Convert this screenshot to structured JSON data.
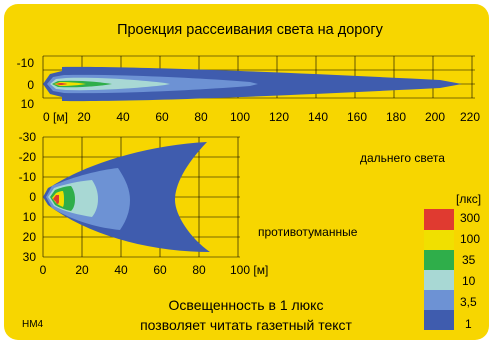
{
  "title": "Проекция рассеивания света на дорогу",
  "colors": {
    "background": "#f7d600",
    "frame": "#ffffff",
    "grid": "#000000",
    "zone_1": "#3f5cae",
    "zone_3_5": "#6d92d4",
    "zone_10": "#a8d8d4",
    "zone_35": "#2fae4a",
    "zone_100": "#f0e000",
    "zone_300": "#e03a30"
  },
  "high_beam": {
    "label": "дальнего света",
    "x_ticks": [
      "0 [м]",
      "20",
      "40",
      "60",
      "80",
      "100",
      "120",
      "140",
      "160",
      "180",
      "200",
      "220"
    ],
    "y_ticks": [
      "-10",
      "0",
      "10"
    ]
  },
  "fog_lamp": {
    "label": "противотуманные",
    "x_ticks": [
      "0",
      "20",
      "40",
      "60",
      "80",
      "100 [м]"
    ],
    "y_ticks": [
      "-30",
      "-20",
      "-10",
      "0",
      "10",
      "20",
      "30"
    ]
  },
  "legend": {
    "unit": "[лкс]",
    "levels": [
      "300",
      "100",
      "35",
      "10",
      "3,5",
      "1"
    ]
  },
  "footer": {
    "line1": "Освещенность в 1 люкс",
    "line2": "позволяет читать газетный текст"
  },
  "code": "HM4"
}
